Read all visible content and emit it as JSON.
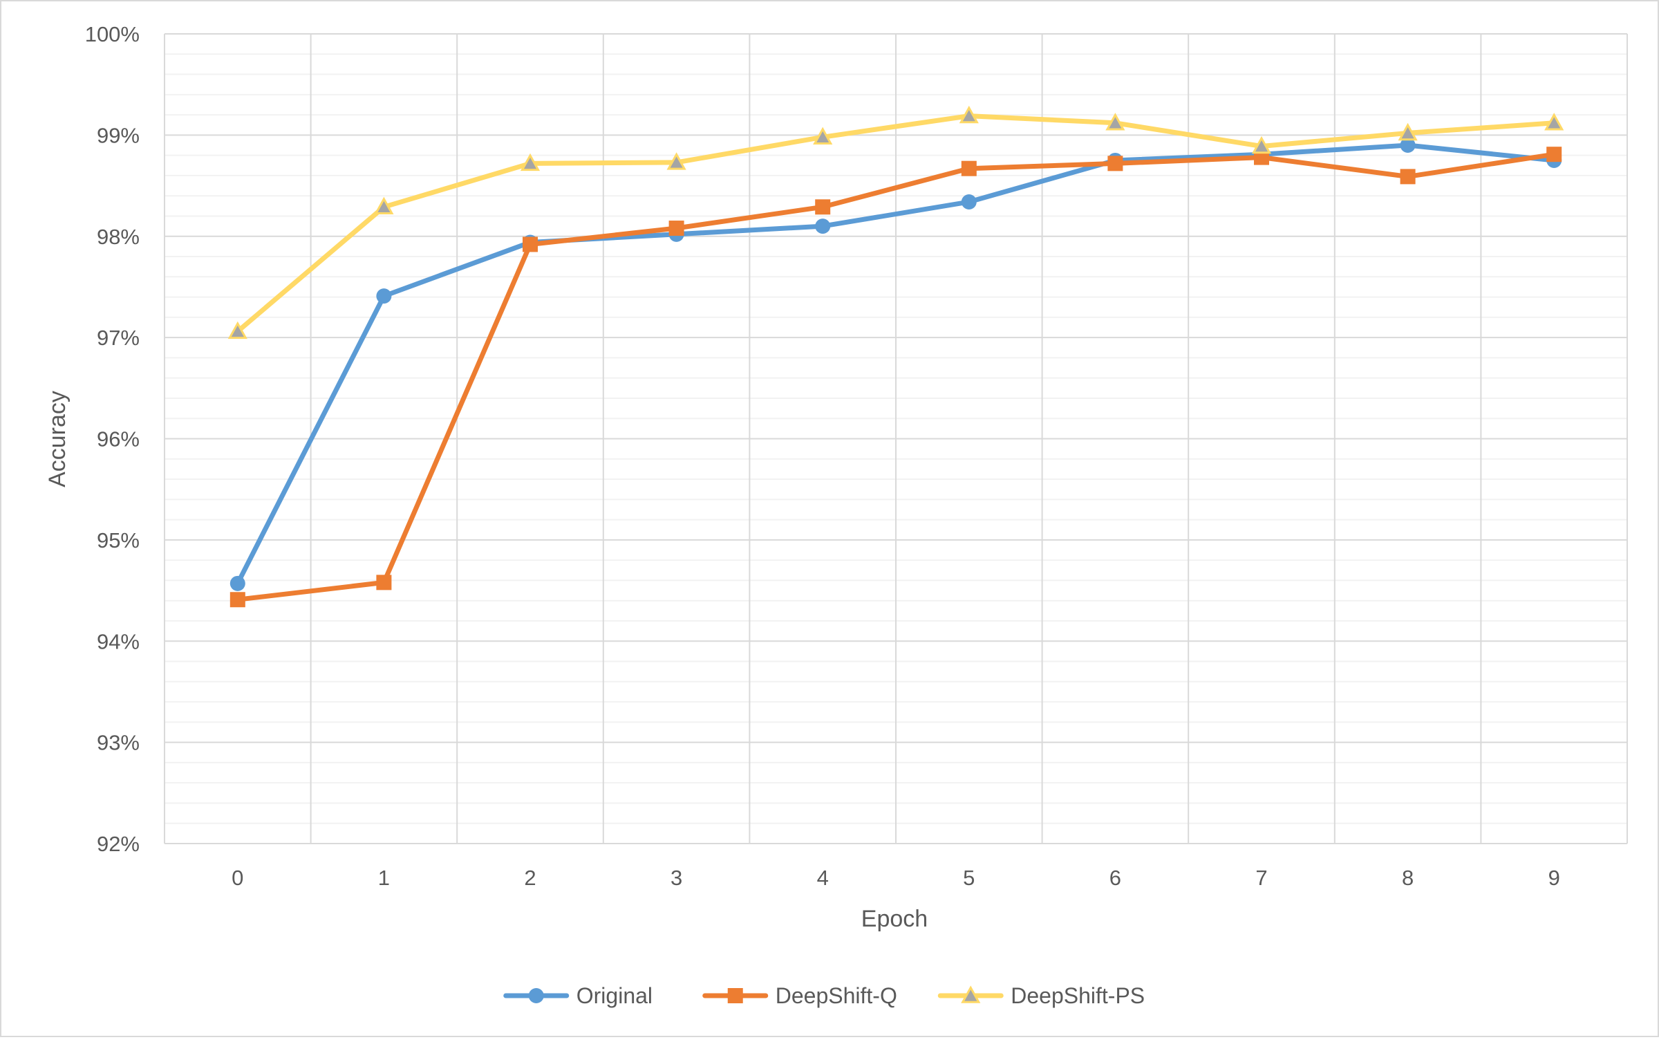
{
  "chart_data": {
    "type": "line",
    "title": "",
    "xlabel": "Epoch",
    "ylabel": "Accuracy",
    "x": [
      "0",
      "1",
      "2",
      "3",
      "4",
      "5",
      "6",
      "7",
      "8",
      "9"
    ],
    "ylim": [
      0.92,
      1.0
    ],
    "y_ticks": [
      0.92,
      0.93,
      0.94,
      0.95,
      0.96,
      0.97,
      0.98,
      0.99,
      1.0
    ],
    "y_tick_labels": [
      "92%",
      "93%",
      "94%",
      "95%",
      "96%",
      "97%",
      "98%",
      "99%",
      "100%"
    ],
    "y_minor_step": 0.002,
    "grid": true,
    "legend_position": "bottom",
    "series": [
      {
        "name": "Original",
        "color": "#5b9bd5",
        "marker": "circle",
        "values": [
          0.9457,
          0.9741,
          0.9794,
          0.9802,
          0.981,
          0.9834,
          0.9875,
          0.9881,
          0.989,
          0.9875
        ]
      },
      {
        "name": "DeepShift-Q",
        "color": "#ed7d31",
        "marker": "square",
        "values": [
          0.9441,
          0.9458,
          0.9792,
          0.9808,
          0.9829,
          0.9867,
          0.9872,
          0.9878,
          0.9859,
          0.9881
        ]
      },
      {
        "name": "DeepShift-PS",
        "color": "#ffd966",
        "marker": "triangle",
        "marker_fill": "#a5a5a5",
        "values": [
          0.9706,
          0.9829,
          0.9872,
          0.9873,
          0.9898,
          0.9919,
          0.9912,
          0.9889,
          0.9902,
          0.9912
        ]
      }
    ]
  }
}
